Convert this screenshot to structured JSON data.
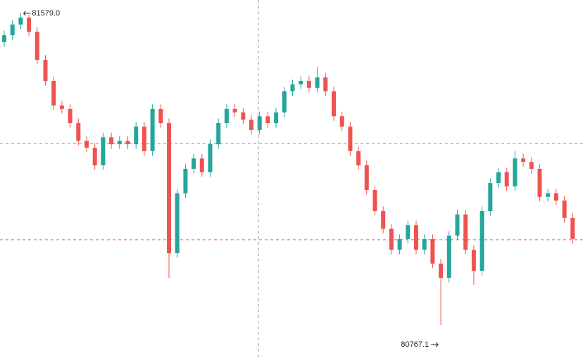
{
  "chart_data": {
    "type": "candlestick",
    "up_color": "#26a69a",
    "down_color": "#ef5350",
    "ylim": [
      80681.0,
      81613.8
    ],
    "max_label": "81579.0",
    "min_label": "80767.1",
    "price_lines": [
      81240,
      80989
    ],
    "open": [
      81504,
      81522,
      81550,
      81568,
      81531,
      81458,
      81403,
      81339,
      81330,
      81293,
      81247,
      81229,
      81183,
      81256,
      81238,
      81247,
      81238,
      81284,
      81220,
      81330,
      81293,
      80954,
      81110,
      81174,
      81201,
      81165,
      81238,
      81293,
      81330,
      81321,
      81302,
      81275,
      81311,
      81293,
      81321,
      81376,
      81394,
      81403,
      81385,
      81412,
      81376,
      81311,
      81284,
      81220,
      81183,
      81119,
      81064,
      81018,
      80963,
      80991,
      81027,
      80963,
      80991,
      80927,
      80890,
      81000,
      81055,
      80963,
      80908,
      81064,
      81137,
      81165,
      81128,
      81201,
      81192,
      81174,
      81101,
      81110,
      81091,
      81046
    ],
    "high": [
      81534,
      81562,
      81579.0,
      81575,
      81543,
      81470,
      81415,
      81351,
      81342,
      81305,
      81259,
      81241,
      81268,
      81268,
      81259,
      81259,
      81296,
      81296,
      81342,
      81342,
      81305,
      81122,
      81186,
      81213,
      81213,
      81250,
      81305,
      81342,
      81342,
      81333,
      81314,
      81323,
      81323,
      81333,
      81388,
      81406,
      81415,
      81415,
      81440,
      81424,
      81388,
      81323,
      81296,
      81232,
      81195,
      81131,
      81076,
      81030,
      81003,
      81039,
      81039,
      81003,
      81003,
      80939,
      81012,
      81067,
      81067,
      80975,
      81076,
      81149,
      81177,
      81177,
      81220,
      81213,
      81204,
      81186,
      81122,
      81122,
      81103,
      81058
    ],
    "low": [
      81492,
      81510,
      81538,
      81519,
      81446,
      81391,
      81327,
      81318,
      81281,
      81235,
      81217,
      81171,
      81171,
      81226,
      81226,
      81226,
      81226,
      81208,
      81208,
      81281,
      80890,
      80942,
      81098,
      81162,
      81153,
      81153,
      81226,
      81281,
      81309,
      81290,
      81263,
      81263,
      81281,
      81281,
      81309,
      81364,
      81382,
      81373,
      81373,
      81364,
      81299,
      81272,
      81208,
      81171,
      81107,
      81052,
      81006,
      80951,
      80951,
      80979,
      80951,
      80951,
      80915,
      80767.1,
      80878,
      80988,
      80951,
      80872,
      80896,
      81052,
      81125,
      81116,
      81116,
      81180,
      81162,
      81089,
      81089,
      81079,
      81034,
      80979
    ],
    "close": [
      81522,
      81550,
      81568,
      81531,
      81458,
      81403,
      81339,
      81330,
      81293,
      81247,
      81229,
      81183,
      81256,
      81238,
      81247,
      81238,
      81284,
      81220,
      81330,
      81293,
      80954,
      81110,
      81174,
      81201,
      81165,
      81238,
      81293,
      81330,
      81321,
      81302,
      81275,
      81311,
      81293,
      81321,
      81376,
      81394,
      81403,
      81385,
      81412,
      81376,
      81311,
      81284,
      81220,
      81183,
      81119,
      81064,
      81018,
      80963,
      80991,
      81027,
      80963,
      80991,
      80927,
      80890,
      81000,
      81055,
      80963,
      80908,
      81064,
      81137,
      81165,
      81128,
      81201,
      81192,
      81174,
      81101,
      81110,
      81091,
      81046,
      80991
    ]
  }
}
